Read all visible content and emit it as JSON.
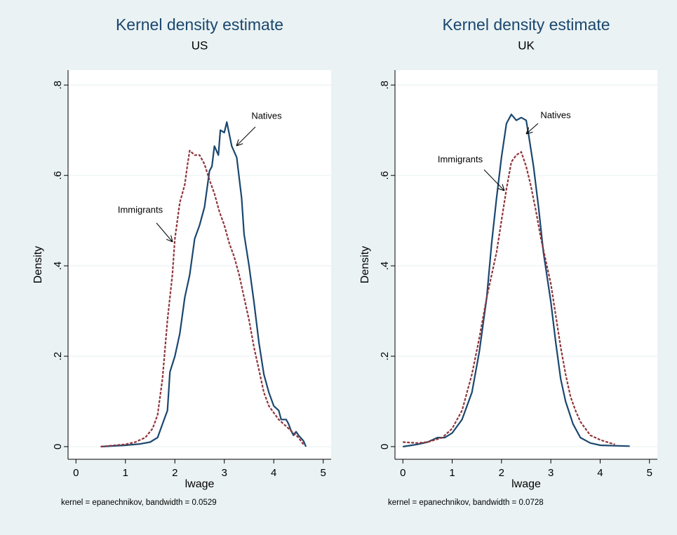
{
  "chart_data": [
    {
      "type": "line",
      "title": "Kernel density estimate",
      "subtitle": "US",
      "xlabel": "lwage",
      "ylabel": "Density",
      "note": "kernel = epanechnikov, bandwidth = 0.0529",
      "xlim": [
        -0.16,
        5.16
      ],
      "ylim": [
        -0.028,
        0.833
      ],
      "xticks": [
        0,
        1,
        2,
        3,
        4,
        5
      ],
      "yticks": [
        0,
        {
          "value": 0.2,
          "label": ".2"
        },
        {
          "value": 0.4,
          "label": ".4"
        },
        {
          "value": 0.6,
          "label": ".6"
        },
        {
          "value": 0.8,
          "label": ".8"
        }
      ],
      "grid": true,
      "series": [
        {
          "name": "Natives",
          "color": "#1a476f",
          "dash": false,
          "x": [
            0.5,
            1.0,
            1.3,
            1.5,
            1.65,
            1.75,
            1.85,
            1.9,
            2.0,
            2.1,
            2.2,
            2.3,
            2.4,
            2.5,
            2.6,
            2.7,
            2.75,
            2.8,
            2.88,
            2.92,
            3.0,
            3.05,
            3.15,
            3.25,
            3.35,
            3.4,
            3.5,
            3.6,
            3.7,
            3.8,
            3.9,
            4.0,
            4.1,
            4.15,
            4.25,
            4.3,
            4.35,
            4.4,
            4.45,
            4.5,
            4.6,
            4.65
          ],
          "values": [
            0,
            0.003,
            0.006,
            0.01,
            0.02,
            0.05,
            0.08,
            0.165,
            0.2,
            0.25,
            0.33,
            0.38,
            0.46,
            0.49,
            0.53,
            0.61,
            0.62,
            0.665,
            0.645,
            0.7,
            0.695,
            0.718,
            0.665,
            0.64,
            0.55,
            0.47,
            0.4,
            0.32,
            0.23,
            0.16,
            0.12,
            0.09,
            0.08,
            0.06,
            0.06,
            0.05,
            0.035,
            0.025,
            0.033,
            0.025,
            0.013,
            0
          ]
        },
        {
          "name": "Immigrants",
          "color": "#90353b",
          "dash": true,
          "x": [
            0.5,
            1.0,
            1.2,
            1.4,
            1.55,
            1.65,
            1.75,
            1.85,
            1.95,
            2.0,
            2.1,
            2.2,
            2.25,
            2.3,
            2.4,
            2.5,
            2.6,
            2.7,
            2.8,
            2.9,
            3.0,
            3.1,
            3.2,
            3.3,
            3.4,
            3.5,
            3.6,
            3.7,
            3.8,
            3.9,
            4.0,
            4.1,
            4.2,
            4.3,
            4.4,
            4.5,
            4.6
          ],
          "values": [
            0,
            0.005,
            0.01,
            0.02,
            0.04,
            0.07,
            0.15,
            0.28,
            0.38,
            0.46,
            0.54,
            0.58,
            0.62,
            0.655,
            0.645,
            0.645,
            0.625,
            0.59,
            0.56,
            0.52,
            0.49,
            0.45,
            0.42,
            0.38,
            0.33,
            0.28,
            0.22,
            0.17,
            0.12,
            0.09,
            0.075,
            0.06,
            0.05,
            0.04,
            0.03,
            0.02,
            0.005
          ]
        }
      ]
    },
    {
      "type": "line",
      "title": "Kernel density estimate",
      "subtitle": "UK",
      "xlabel": "lwage",
      "ylabel": "Density",
      "note": "kernel = epanechnikov, bandwidth = 0.0728",
      "xlim": [
        -0.16,
        5.16
      ],
      "ylim": [
        -0.028,
        0.833
      ],
      "xticks": [
        0,
        1,
        2,
        3,
        4,
        5
      ],
      "yticks": [
        0,
        {
          "value": 0.2,
          "label": ".2"
        },
        {
          "value": 0.4,
          "label": ".4"
        },
        {
          "value": 0.6,
          "label": ".6"
        },
        {
          "value": 0.8,
          "label": ".8"
        }
      ],
      "grid": true,
      "series": [
        {
          "name": "Natives",
          "color": "#1a476f",
          "dash": false,
          "x": [
            0,
            0.3,
            0.5,
            0.7,
            0.85,
            1.0,
            1.2,
            1.4,
            1.55,
            1.7,
            1.8,
            1.9,
            2.0,
            2.1,
            2.2,
            2.3,
            2.4,
            2.5,
            2.55,
            2.65,
            2.75,
            2.85,
            3.0,
            3.1,
            3.2,
            3.3,
            3.45,
            3.6,
            3.8,
            4.0,
            4.3,
            4.6
          ],
          "values": [
            0,
            0.005,
            0.01,
            0.02,
            0.02,
            0.03,
            0.06,
            0.12,
            0.21,
            0.33,
            0.45,
            0.55,
            0.64,
            0.715,
            0.735,
            0.722,
            0.728,
            0.722,
            0.69,
            0.62,
            0.53,
            0.43,
            0.32,
            0.23,
            0.15,
            0.1,
            0.05,
            0.02,
            0.008,
            0.003,
            0.002,
            0.001
          ]
        },
        {
          "name": "Immigrants",
          "color": "#90353b",
          "dash": true,
          "x": [
            0,
            0.3,
            0.5,
            0.8,
            1.0,
            1.2,
            1.4,
            1.55,
            1.7,
            1.9,
            2.0,
            2.1,
            2.2,
            2.3,
            2.4,
            2.5,
            2.6,
            2.7,
            2.8,
            3.0,
            3.1,
            3.2,
            3.3,
            3.4,
            3.5,
            3.6,
            3.7,
            3.8,
            4.0,
            4.2,
            4.3
          ],
          "values": [
            0.01,
            0.008,
            0.01,
            0.02,
            0.04,
            0.08,
            0.16,
            0.24,
            0.33,
            0.43,
            0.5,
            0.57,
            0.63,
            0.645,
            0.652,
            0.62,
            0.575,
            0.52,
            0.46,
            0.36,
            0.29,
            0.22,
            0.16,
            0.11,
            0.08,
            0.055,
            0.04,
            0.025,
            0.015,
            0.008,
            0.005
          ]
        }
      ]
    }
  ]
}
